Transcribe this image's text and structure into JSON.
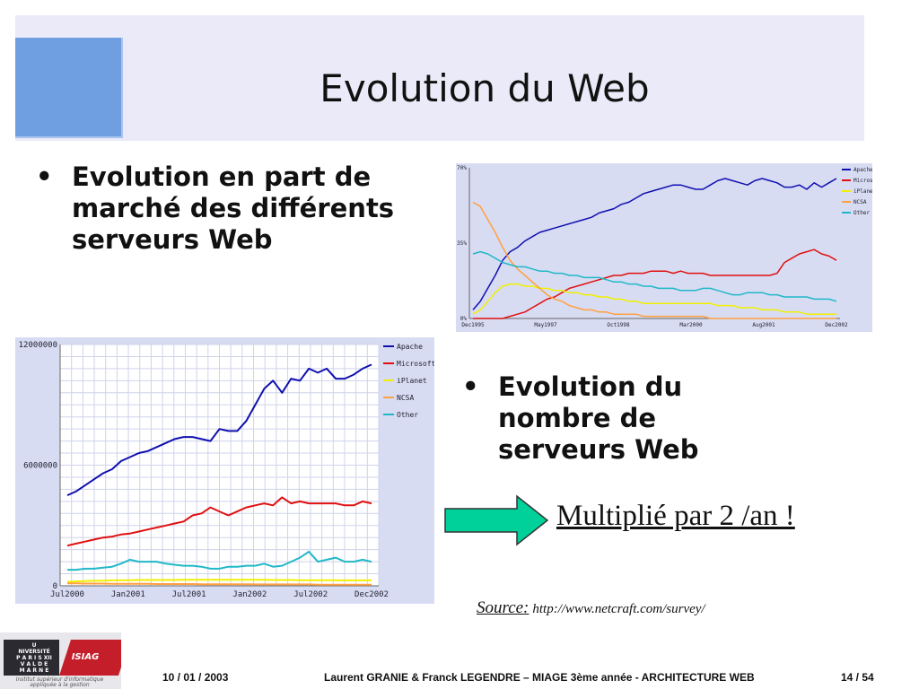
{
  "slide": {
    "title": "Evolution du Web",
    "bullets": [
      {
        "marker": "•",
        "text": "Evolution en part de marché des différents serveurs Web"
      },
      {
        "marker": "•",
        "text": "Evolution du nombre de serveurs Web"
      }
    ],
    "headline": "Multiplié par 2 /an !",
    "source": {
      "label": "Source:",
      "url": "http://www.netcraft.com/survey/"
    },
    "footer": {
      "date": "10 / 01 / 2003",
      "authors": "Laurent GRANIE & Franck LEGENDRE – MIAGE 3ème année - ARCHITECTURE WEB",
      "page": "14 / 54"
    },
    "logo": {
      "university_lines": [
        "U NIVERSITÉ",
        "P A R I S  XII",
        "V A L  D E",
        "M A R N E"
      ],
      "brand": "ISIAG",
      "caption": "Institut supérieur d'informatique appliquée à la gestion"
    },
    "colors": {
      "header_band": "#eaeaf8",
      "header_square": "#6f9fe0",
      "arrow_fill": "#00d09a",
      "chart_bg": "#d8dcf2"
    },
    "icons": {
      "arrow": "right-arrow-icon"
    }
  },
  "chart_data": [
    {
      "type": "line",
      "title": "",
      "xlabel": "",
      "ylabel": "",
      "grid": false,
      "legend": "right",
      "x_tick_labels": [
        "Dec1995",
        "May1997",
        "Oct1998",
        "Mar2000",
        "Aug2001",
        "Dec2002"
      ],
      "y_tick_labels": [
        "0%",
        "35%",
        "70%"
      ],
      "ylim": [
        0,
        70
      ],
      "series": [
        {
          "name": "Apache",
          "color": "#1010b0",
          "values": [
            4,
            8,
            14,
            20,
            27,
            31,
            33,
            36,
            38,
            40,
            41,
            42,
            43,
            44,
            45,
            46,
            47,
            49,
            50,
            51,
            53,
            54,
            56,
            58,
            59,
            60,
            61,
            62,
            62,
            61,
            60,
            60,
            62,
            64,
            65,
            64,
            63,
            62,
            64,
            65,
            64,
            63,
            61,
            61,
            62,
            60,
            63,
            61,
            63,
            65
          ]
        },
        {
          "name": "Microsoft",
          "color": "#e01010",
          "values": [
            0,
            0,
            0,
            0,
            0,
            1,
            2,
            3,
            5,
            7,
            9,
            10,
            12,
            14,
            15,
            16,
            17,
            18,
            19,
            20,
            20,
            21,
            21,
            21,
            22,
            22,
            22,
            21,
            22,
            21,
            21,
            21,
            20,
            20,
            20,
            20,
            20,
            20,
            20,
            20,
            20,
            21,
            26,
            28,
            30,
            31,
            32,
            30,
            29,
            27
          ]
        },
        {
          "name": "iPlanet",
          "color": "#f0f000",
          "values": [
            2,
            4,
            8,
            12,
            15,
            16,
            16,
            15,
            15,
            14,
            14,
            13,
            13,
            12,
            12,
            11,
            11,
            10,
            10,
            9,
            9,
            8,
            8,
            7,
            7,
            7,
            7,
            7,
            7,
            7,
            7,
            7,
            7,
            6,
            6,
            6,
            5,
            5,
            5,
            4,
            4,
            4,
            3,
            3,
            3,
            2,
            2,
            2,
            2,
            2
          ]
        },
        {
          "name": "NCSA",
          "color": "#ffa040",
          "values": [
            54,
            52,
            46,
            40,
            33,
            27,
            23,
            20,
            17,
            14,
            11,
            9,
            8,
            6,
            5,
            4,
            4,
            3,
            3,
            2,
            2,
            2,
            2,
            1,
            1,
            1,
            1,
            1,
            1,
            1,
            1,
            1,
            0,
            0,
            0,
            0,
            0,
            0,
            0,
            0,
            0,
            0,
            0,
            0,
            0,
            0,
            0,
            0,
            0,
            0
          ]
        },
        {
          "name": "Other",
          "color": "#20b8c8",
          "values": [
            30,
            31,
            30,
            28,
            26,
            25,
            24,
            24,
            23,
            22,
            22,
            21,
            21,
            20,
            20,
            19,
            19,
            19,
            18,
            17,
            17,
            16,
            16,
            15,
            15,
            14,
            14,
            14,
            13,
            13,
            13,
            14,
            14,
            13,
            12,
            11,
            11,
            12,
            12,
            12,
            11,
            11,
            10,
            10,
            10,
            10,
            9,
            9,
            9,
            8
          ]
        }
      ]
    },
    {
      "type": "line",
      "title": "",
      "xlabel": "",
      "ylabel": "",
      "grid": true,
      "legend": "right",
      "x_tick_labels": [
        "Jul2000",
        "Jan2001",
        "Jul2001",
        "Jan2002",
        "Jul2002",
        "Dec2002"
      ],
      "y_tick_labels": [
        "0",
        "6000000",
        "12000000"
      ],
      "ylim": [
        0,
        12000000
      ],
      "series": [
        {
          "name": "Apache",
          "color": "#1010b0",
          "values": [
            4500000,
            4700000,
            5000000,
            5300000,
            5600000,
            5800000,
            6200000,
            6400000,
            6600000,
            6700000,
            6900000,
            7100000,
            7300000,
            7400000,
            7400000,
            7300000,
            7200000,
            7800000,
            7700000,
            7700000,
            8200000,
            9000000,
            9800000,
            10200000,
            9600000,
            10300000,
            10200000,
            10800000,
            10600000,
            10800000,
            10300000,
            10300000,
            10500000,
            10800000,
            11000000
          ]
        },
        {
          "name": "Microsoft",
          "color": "#e01010",
          "values": [
            2000000,
            2100000,
            2200000,
            2300000,
            2400000,
            2450000,
            2550000,
            2600000,
            2700000,
            2800000,
            2900000,
            3000000,
            3100000,
            3200000,
            3500000,
            3600000,
            3900000,
            3700000,
            3500000,
            3700000,
            3900000,
            4000000,
            4100000,
            4000000,
            4400000,
            4100000,
            4200000,
            4100000,
            4100000,
            4100000,
            4100000,
            4000000,
            4000000,
            4200000,
            4100000
          ]
        },
        {
          "name": "iPlanet",
          "color": "#f0f000",
          "values": [
            200000,
            220000,
            240000,
            250000,
            260000,
            270000,
            280000,
            280000,
            290000,
            290000,
            290000,
            290000,
            290000,
            300000,
            300000,
            300000,
            300000,
            300000,
            300000,
            300000,
            300000,
            300000,
            300000,
            290000,
            290000,
            290000,
            280000,
            280000,
            280000,
            280000,
            280000,
            270000,
            270000,
            270000,
            270000
          ]
        },
        {
          "name": "NCSA",
          "color": "#ffa040",
          "values": [
            120000,
            120000,
            110000,
            110000,
            110000,
            100000,
            100000,
            100000,
            100000,
            100000,
            90000,
            90000,
            90000,
            90000,
            90000,
            80000,
            80000,
            80000,
            80000,
            80000,
            80000,
            70000,
            70000,
            70000,
            70000,
            70000,
            70000,
            70000,
            60000,
            60000,
            60000,
            60000,
            60000,
            60000,
            60000
          ]
        },
        {
          "name": "Other",
          "color": "#20b8c8",
          "values": [
            800000,
            800000,
            850000,
            850000,
            900000,
            950000,
            1100000,
            1300000,
            1200000,
            1200000,
            1200000,
            1100000,
            1050000,
            1000000,
            1000000,
            950000,
            850000,
            850000,
            950000,
            950000,
            1000000,
            1000000,
            1100000,
            950000,
            1000000,
            1200000,
            1400000,
            1700000,
            1200000,
            1300000,
            1400000,
            1200000,
            1200000,
            1300000,
            1200000
          ]
        }
      ]
    }
  ]
}
